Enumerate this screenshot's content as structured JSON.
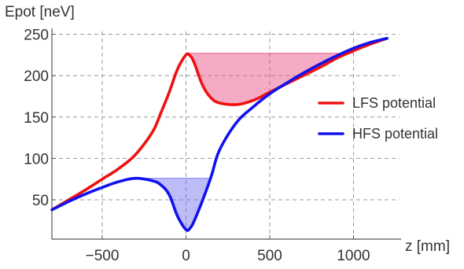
{
  "chart_data": {
    "type": "line",
    "xlabel": "z [mm]",
    "ylabel": "Epot [neV]",
    "xlim": [
      -800,
      1230
    ],
    "ylim": [
      22,
      252
    ],
    "grid": true,
    "legend_placement": "right",
    "x_ticks": [
      -500,
      0,
      500,
      1000
    ],
    "x_tick_labels": [
      "−500",
      "0",
      "500",
      "1000"
    ],
    "y_ticks": [
      50,
      100,
      150,
      200,
      250
    ],
    "y_tick_labels": [
      "50",
      "100",
      "150",
      "200",
      "250"
    ],
    "series": [
      {
        "name": "LFS potential",
        "color": "#ee1111",
        "x": [
          -800,
          -700,
          -600,
          -500,
          -400,
          -300,
          -200,
          -150,
          -100,
          -50,
          0,
          25,
          50,
          100,
          150,
          200,
          300,
          400,
          500,
          600,
          700,
          800,
          900,
          1000,
          1100,
          1200
        ],
        "y": [
          38,
          50,
          62,
          75,
          88,
          105,
          132,
          155,
          180,
          208,
          225,
          224,
          215,
          188,
          173,
          167,
          165,
          170,
          180,
          190,
          200,
          210,
          221,
          230,
          238,
          245
        ]
      },
      {
        "name": "HFS potential",
        "color": "#1111ee",
        "x": [
          -800,
          -700,
          -600,
          -500,
          -400,
          -300,
          -200,
          -150,
          -100,
          -50,
          0,
          25,
          50,
          100,
          150,
          200,
          300,
          400,
          500,
          600,
          700,
          800,
          900,
          1000,
          1100,
          1200
        ],
        "y": [
          38,
          48,
          57,
          65,
          72,
          76,
          73,
          68,
          56,
          30,
          14,
          16,
          25,
          50,
          78,
          110,
          143,
          162,
          178,
          191,
          203,
          214,
          224,
          233,
          240,
          245
        ]
      }
    ],
    "filled_regions": [
      {
        "series": "LFS potential",
        "level": 227,
        "x_range": [
          0,
          1000
        ],
        "color": "#e8447a"
      },
      {
        "series": "HFS potential",
        "level": 76,
        "x_range": [
          -300,
          150
        ],
        "color": "#6a6aee"
      }
    ]
  }
}
